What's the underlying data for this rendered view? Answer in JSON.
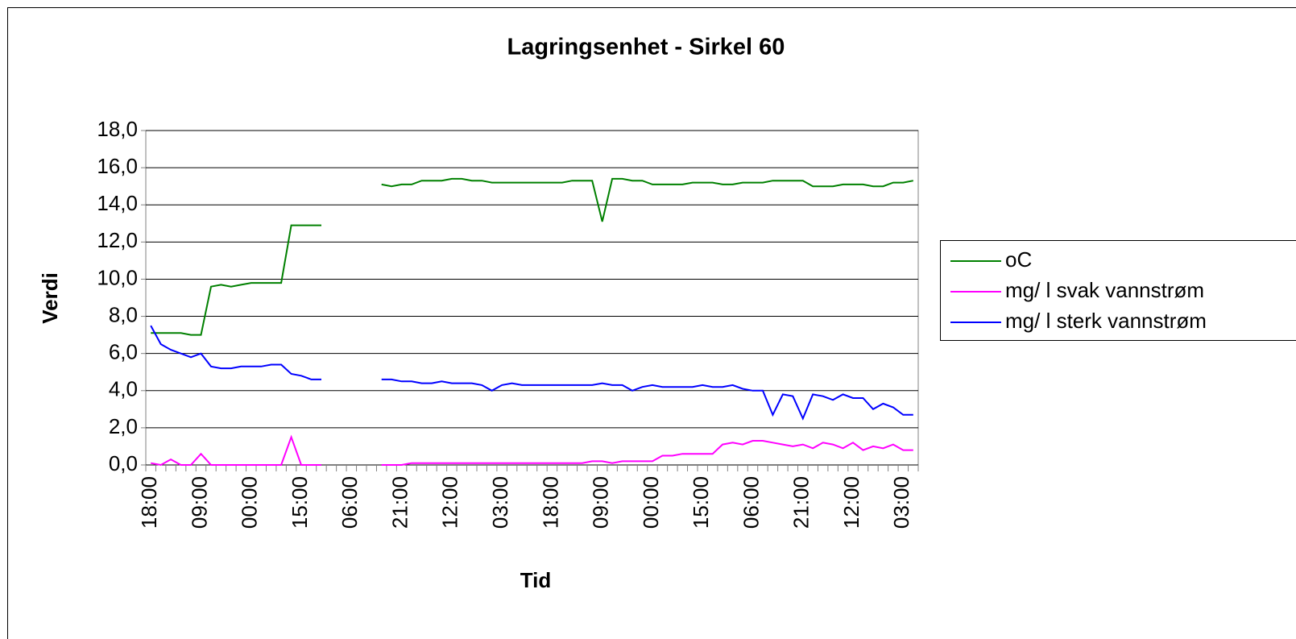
{
  "chart_data": {
    "type": "line",
    "title": "Lagringsenhet - Sirkel 60",
    "xlabel": "Tid",
    "ylabel": "Verdi",
    "categories": [
      "18:00",
      null,
      null,
      null,
      null,
      "09:00",
      null,
      null,
      null,
      null,
      "00:00",
      null,
      null,
      null,
      null,
      "15:00",
      null,
      null,
      null,
      null,
      "06:00",
      null,
      null,
      null,
      null,
      "21:00",
      null,
      null,
      null,
      null,
      "12:00",
      null,
      null,
      null,
      null,
      "03:00",
      null,
      null,
      null,
      null,
      "18:00",
      null,
      null,
      null,
      null,
      "09:00",
      null,
      null,
      null,
      null,
      "00:00",
      null,
      null,
      null,
      null,
      "15:00",
      null,
      null,
      null,
      null,
      "06:00",
      null,
      null,
      null,
      null,
      "21:00",
      null,
      null,
      null,
      null,
      "12:00",
      null,
      null,
      null,
      null,
      "03:00",
      null
    ],
    "series": [
      {
        "name": "oC",
        "color": "#008000",
        "values": [
          7.1,
          7.1,
          7.1,
          7.1,
          7.0,
          7.0,
          9.6,
          9.7,
          9.6,
          9.7,
          9.8,
          9.8,
          9.8,
          9.8,
          12.9,
          12.9,
          12.9,
          12.9,
          null,
          null,
          null,
          null,
          null,
          15.1,
          15.0,
          15.1,
          15.1,
          15.3,
          15.3,
          15.3,
          15.4,
          15.4,
          15.3,
          15.3,
          15.2,
          15.2,
          15.2,
          15.2,
          15.2,
          15.2,
          15.2,
          15.2,
          15.3,
          15.3,
          15.3,
          13.1,
          15.4,
          15.4,
          15.3,
          15.3,
          15.1,
          15.1,
          15.1,
          15.1,
          15.2,
          15.2,
          15.2,
          15.1,
          15.1,
          15.2,
          15.2,
          15.2,
          15.3,
          15.3,
          15.3,
          15.3,
          15.0,
          15.0,
          15.0,
          15.1,
          15.1,
          15.1,
          15.0,
          15.0,
          15.2,
          15.2,
          15.3
        ]
      },
      {
        "name": "mg/ l svak vannstrøm",
        "color": "#ff00ff",
        "values": [
          0.1,
          0.0,
          0.3,
          0,
          0,
          0.6,
          0,
          0,
          0,
          0,
          0,
          0,
          0,
          0,
          1.5,
          0,
          0,
          0,
          null,
          null,
          null,
          null,
          null,
          0,
          0,
          0,
          0.1,
          0.1,
          0.1,
          0.1,
          0.1,
          0.1,
          0.1,
          0.1,
          0.1,
          0.1,
          0.1,
          0.1,
          0.1,
          0.1,
          0.1,
          0.1,
          0.1,
          0.1,
          0.2,
          0.2,
          0.1,
          0.2,
          0.2,
          0.2,
          0.2,
          0.5,
          0.5,
          0.6,
          0.6,
          0.6,
          0.6,
          1.1,
          1.2,
          1.1,
          1.3,
          1.3,
          1.2,
          1.1,
          1.0,
          1.1,
          0.9,
          1.2,
          1.1,
          0.9,
          1.2,
          0.8,
          1.0,
          0.9,
          1.1,
          0.8,
          0.8
        ]
      },
      {
        "name": "mg/ l sterk vannstrøm",
        "color": "#0000ff",
        "values": [
          7.5,
          6.5,
          6.2,
          6.0,
          5.8,
          6.0,
          5.3,
          5.2,
          5.2,
          5.3,
          5.3,
          5.3,
          5.4,
          5.4,
          4.9,
          4.8,
          4.6,
          4.6,
          null,
          null,
          null,
          null,
          null,
          4.6,
          4.6,
          4.5,
          4.5,
          4.4,
          4.4,
          4.5,
          4.4,
          4.4,
          4.4,
          4.3,
          4.0,
          4.3,
          4.4,
          4.3,
          4.3,
          4.3,
          4.3,
          4.3,
          4.3,
          4.3,
          4.3,
          4.4,
          4.3,
          4.3,
          4.0,
          4.2,
          4.3,
          4.2,
          4.2,
          4.2,
          4.2,
          4.3,
          4.2,
          4.2,
          4.3,
          4.1,
          4.0,
          4.0,
          2.7,
          3.8,
          3.7,
          2.5,
          3.8,
          3.7,
          3.5,
          3.8,
          3.6,
          3.6,
          3.0,
          3.3,
          3.1,
          2.7,
          2.7
        ]
      }
    ],
    "ylim": [
      0,
      18
    ],
    "yticks": [
      {
        "value": 0,
        "label": "0,0"
      },
      {
        "value": 2,
        "label": "2,0"
      },
      {
        "value": 4,
        "label": "4,0"
      },
      {
        "value": 6,
        "label": "6,0"
      },
      {
        "value": 8,
        "label": "8,0"
      },
      {
        "value": 10,
        "label": "10,0"
      },
      {
        "value": 12,
        "label": "12,0"
      },
      {
        "value": 14,
        "label": "14,0"
      },
      {
        "value": 16,
        "label": "16,0"
      },
      {
        "value": 18,
        "label": "18,0"
      }
    ],
    "grid": true,
    "legend": "right"
  }
}
